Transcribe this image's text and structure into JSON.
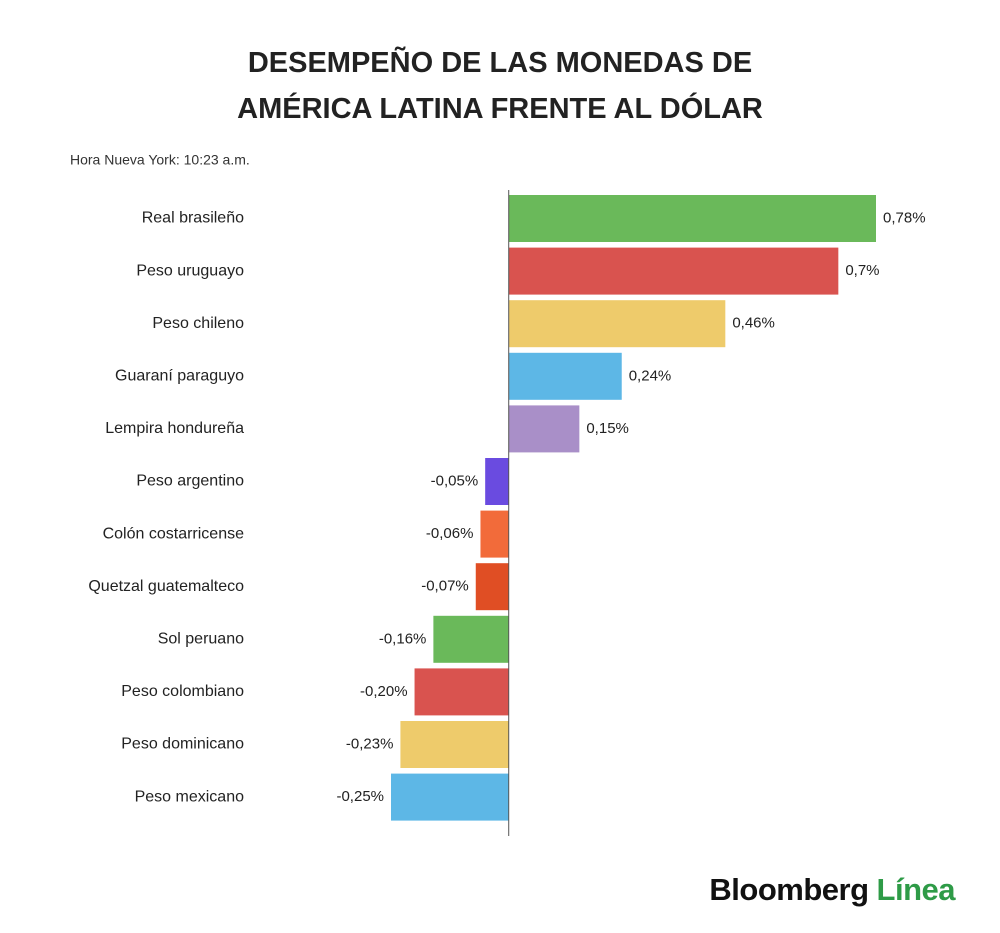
{
  "chart_data": {
    "type": "bar",
    "orientation": "horizontal",
    "title": "DESEMPEÑO DE LAS MONEDAS DE AMÉRICA LATINA FRENTE AL DÓLAR",
    "subtitle": "Hora Nueva York: 10:23 a.m.",
    "categories": [
      "Real brasileño",
      "Peso uruguayo",
      "Peso chileno",
      "Guaraní paraguyo",
      "Lempira hondureña",
      "Peso argentino",
      "Colón costarricense",
      "Quetzal guatemalteco",
      "Sol peruano",
      "Peso colombiano",
      "Peso dominicano",
      "Peso mexicano"
    ],
    "values": [
      0.78,
      0.7,
      0.46,
      0.24,
      0.15,
      -0.05,
      -0.06,
      -0.07,
      -0.16,
      -0.2,
      -0.23,
      -0.25
    ],
    "value_labels": [
      "0,78%",
      "0,7%",
      "0,46%",
      "0,24%",
      "0,15%",
      "-0,05%",
      "-0,06%",
      "-0,07%",
      "-0,16%",
      "-0,20%",
      "-0,23%",
      "-0,25%"
    ],
    "colors": [
      "#6ab95a",
      "#d9534f",
      "#eecb6b",
      "#5db7e6",
      "#a98fc8",
      "#6a4be0",
      "#f26b3a",
      "#e04e24",
      "#6ab95a",
      "#d9534f",
      "#eecb6b",
      "#5db7e6"
    ]
  },
  "brand": {
    "name": "Bloomberg",
    "suffix": "Línea"
  }
}
